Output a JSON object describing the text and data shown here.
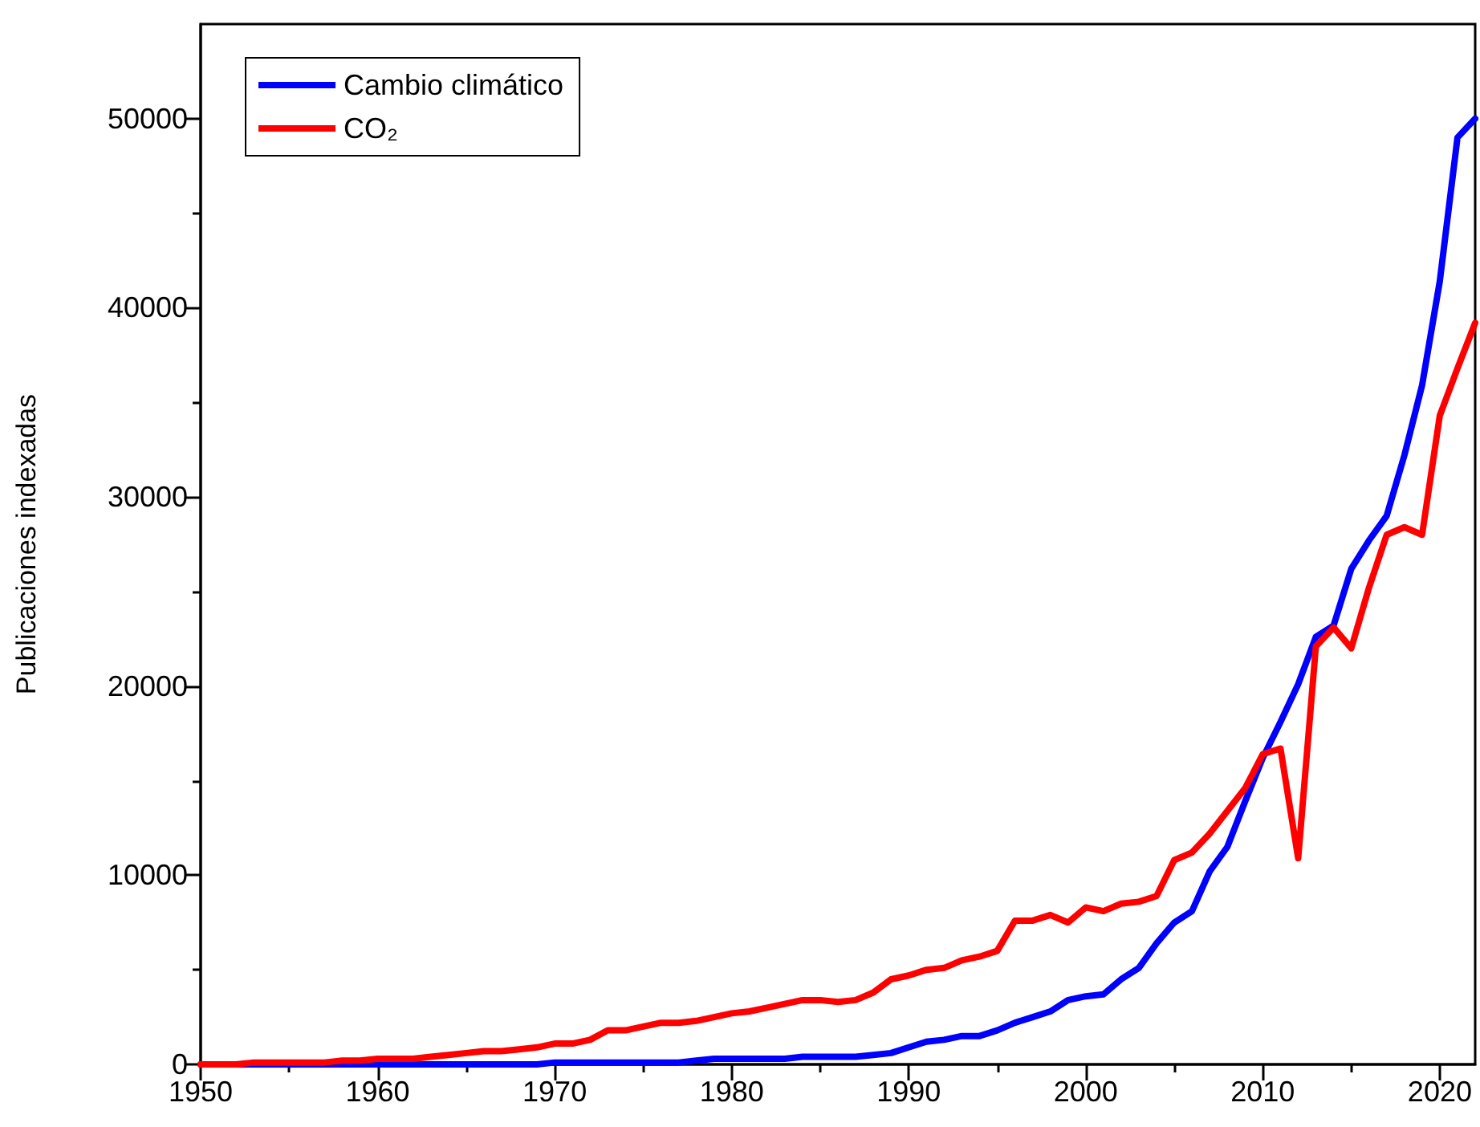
{
  "chart_data": {
    "type": "line",
    "ylabel": "Publicaciones indexadas",
    "x": [
      1950,
      1951,
      1952,
      1953,
      1954,
      1955,
      1956,
      1957,
      1958,
      1959,
      1960,
      1961,
      1962,
      1963,
      1964,
      1965,
      1966,
      1967,
      1968,
      1969,
      1970,
      1971,
      1972,
      1973,
      1974,
      1975,
      1976,
      1977,
      1978,
      1979,
      1980,
      1981,
      1982,
      1983,
      1984,
      1985,
      1986,
      1987,
      1988,
      1989,
      1990,
      1991,
      1992,
      1993,
      1994,
      1995,
      1996,
      1997,
      1998,
      1999,
      2000,
      2001,
      2002,
      2003,
      2004,
      2005,
      2006,
      2007,
      2008,
      2009,
      2010,
      2011,
      2012,
      2013,
      2014,
      2015,
      2016,
      2017,
      2018,
      2019,
      2020,
      2021,
      2022
    ],
    "series": [
      {
        "name": "Cambio climático",
        "color": "#0000ff",
        "values": [
          0,
          0,
          0,
          0,
          0,
          0,
          0,
          0,
          0,
          0,
          0,
          0,
          0,
          0,
          0,
          0,
          0,
          0,
          0,
          0,
          100,
          100,
          100,
          100,
          100,
          100,
          100,
          100,
          200,
          300,
          300,
          300,
          300,
          300,
          400,
          400,
          400,
          400,
          500,
          600,
          900,
          1200,
          1300,
          1500,
          1500,
          1800,
          2200,
          2500,
          2800,
          3400,
          3600,
          3700,
          4500,
          5100,
          6400,
          7500,
          8100,
          10200,
          11500,
          13900,
          16200,
          18100,
          20100,
          22600,
          23200,
          26200,
          27700,
          29000,
          32200,
          35900,
          41400,
          49000,
          50000
        ]
      },
      {
        "name": "CO₂",
        "color": "#ff0000",
        "values": [
          0,
          0,
          0,
          100,
          100,
          100,
          100,
          100,
          200,
          200,
          300,
          300,
          300,
          400,
          500,
          600,
          700,
          700,
          800,
          900,
          1100,
          1100,
          1300,
          1800,
          1800,
          2000,
          2200,
          2200,
          2300,
          2500,
          2700,
          2800,
          3000,
          3200,
          3400,
          3400,
          3300,
          3400,
          3800,
          4500,
          4700,
          5000,
          5100,
          5500,
          5700,
          6000,
          7600,
          7600,
          7900,
          7500,
          8300,
          8100,
          8500,
          8600,
          8900,
          10800,
          11200,
          12200,
          13400,
          14600,
          16400,
          16700,
          10900,
          22100,
          23100,
          22000,
          25200,
          28000,
          28400,
          28000,
          34300,
          36800,
          39200
        ]
      }
    ],
    "xlim": [
      1950,
      2022
    ],
    "xticks": [
      1950,
      1960,
      1970,
      1980,
      1990,
      2000,
      2010,
      2020
    ],
    "ylim": [
      0,
      55000
    ],
    "yticks": [
      0,
      10000,
      20000,
      30000,
      40000,
      50000
    ],
    "legend": "top left",
    "marker": "none",
    "line_style": "solid",
    "grid": false
  }
}
